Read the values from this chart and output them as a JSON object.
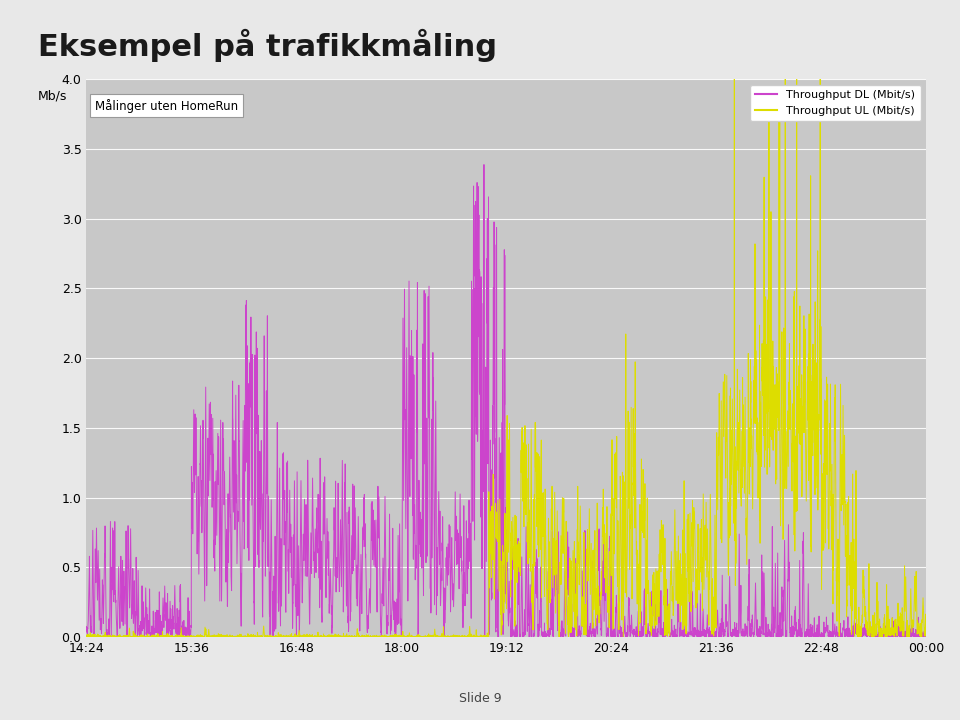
{
  "title": "Eksempel på trafikkmåling",
  "ylabel": "Mb/s",
  "yticks": [
    0,
    0.5,
    1,
    1.5,
    2,
    2.5,
    3,
    3.5,
    4
  ],
  "ylim": [
    0,
    4
  ],
  "xtick_labels": [
    "14:24",
    "15:36",
    "16:48",
    "18:00",
    "19:12",
    "20:24",
    "21:36",
    "22:48",
    "00:00"
  ],
  "xtick_positions": [
    0,
    72,
    144,
    216,
    288,
    360,
    432,
    504,
    576
  ],
  "xlim": [
    0,
    576
  ],
  "dl_color": "#cc44cc",
  "ul_color": "#dddd00",
  "dl_label": "Throughput DL (Mbit/s)",
  "ul_label": "Throughput UL (Mbit/s)",
  "box_label": "Målinger uten HomeRun",
  "slide_text": "Slide 9",
  "page_bg": "#e8e8e8",
  "plot_bg": "#c8c8c8",
  "title_fontsize": 22,
  "axis_fontsize": 9,
  "legend_fontsize": 8,
  "grid_color": "#bbbbbb",
  "line_width": 0.7
}
